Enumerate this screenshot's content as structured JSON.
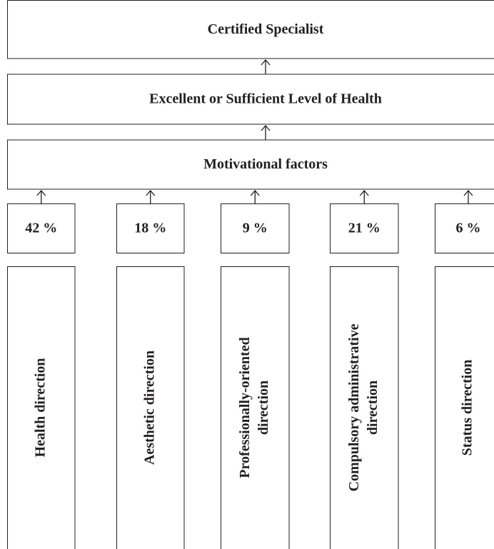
{
  "tiers": [
    {
      "label": "Certified Specialist"
    },
    {
      "label": "Excellent or Sufficient Level of Health"
    },
    {
      "label": "Motivational factors"
    }
  ],
  "columns": [
    {
      "percent": "42 %",
      "label_lines": [
        "Health direction"
      ]
    },
    {
      "percent": "18 %",
      "label_lines": [
        "Aesthetic direction"
      ]
    },
    {
      "percent": "9 %",
      "label_lines": [
        "Professionally-oriented",
        "direction"
      ]
    },
    {
      "percent": "21 %",
      "label_lines": [
        "Compulsory administrative",
        "direction"
      ]
    },
    {
      "percent": "6 %",
      "label_lines": [
        "Status direction"
      ]
    }
  ]
}
